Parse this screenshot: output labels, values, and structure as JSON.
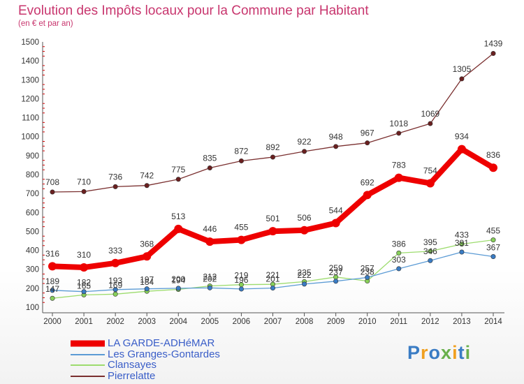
{
  "title": "Evolution des Impôts locaux pour la Commune par Habitant",
  "subtitle": "(en € et par an)",
  "logo": "Proxiti",
  "colors": {
    "axis": "#555555",
    "grid_tick": "#d00000",
    "label": "#333333",
    "title": "#c8366e",
    "legend": "#3a5ec8"
  },
  "chart_data": {
    "type": "line",
    "title": "Evolution des Impôts locaux pour la Commune par Habitant",
    "ylabel": "(en € et par an)",
    "xlabel": "",
    "categories": [
      "2000",
      "2001",
      "2002",
      "2003",
      "2004",
      "2005",
      "2006",
      "2007",
      "2008",
      "2009",
      "2010",
      "2011",
      "2012",
      "2013",
      "2014"
    ],
    "ylim": [
      100,
      1500
    ],
    "yticks": [
      100,
      200,
      300,
      400,
      500,
      600,
      700,
      800,
      900,
      1000,
      1100,
      1200,
      1300,
      1400,
      1500
    ],
    "series": [
      {
        "name": "LA GARDE-ADHéMAR",
        "color": "#ee0000",
        "marker": "#ee0000",
        "width": 8,
        "values": [
          316,
          310,
          333,
          368,
          513,
          446,
          455,
          501,
          506,
          544,
          692,
          783,
          754,
          934,
          836
        ]
      },
      {
        "name": "Les Granges-Gontardes",
        "color": "#5b9bd5",
        "marker": "#3a7cc4",
        "width": 1.3,
        "values": [
          189,
          182,
          193,
          197,
          200,
          202,
          196,
          201,
          222,
          237,
          257,
          303,
          346,
          391,
          367
        ]
      },
      {
        "name": "Clansayes",
        "color": "#9ddc6e",
        "marker": "#88d05a",
        "width": 1.3,
        "values": [
          147,
          165,
          169,
          184,
          194,
          212,
          219,
          221,
          235,
          259,
          238,
          386,
          395,
          433,
          455
        ]
      },
      {
        "name": "Pierrelatte",
        "color": "#7a2f2f",
        "marker": "#6a2020",
        "width": 1.3,
        "values": [
          708,
          710,
          736,
          742,
          775,
          835,
          872,
          892,
          922,
          948,
          967,
          1018,
          1069,
          1305,
          1439
        ]
      }
    ],
    "labels": [
      [
        "316",
        "310",
        "333",
        "368",
        "513",
        "446",
        "455",
        "501",
        "506",
        "544",
        "692",
        "783",
        "754",
        "934",
        "836"
      ],
      [
        "189",
        "182",
        "193",
        "197",
        "200",
        "202",
        "196",
        "201",
        "222",
        "237",
        "257",
        "303",
        "346",
        "391",
        "367"
      ],
      [
        "147",
        "165",
        "169",
        "184",
        "194",
        "212",
        "219",
        "221",
        "235",
        "259",
        "238",
        "386",
        "395",
        "433",
        "455"
      ],
      [
        "708",
        "710",
        "736",
        "742",
        "775",
        "835",
        "872",
        "892",
        "922",
        "948",
        "967",
        "1018",
        "1069",
        "1305",
        "1439"
      ]
    ],
    "legend_position": "bottom-left",
    "grid": false
  }
}
